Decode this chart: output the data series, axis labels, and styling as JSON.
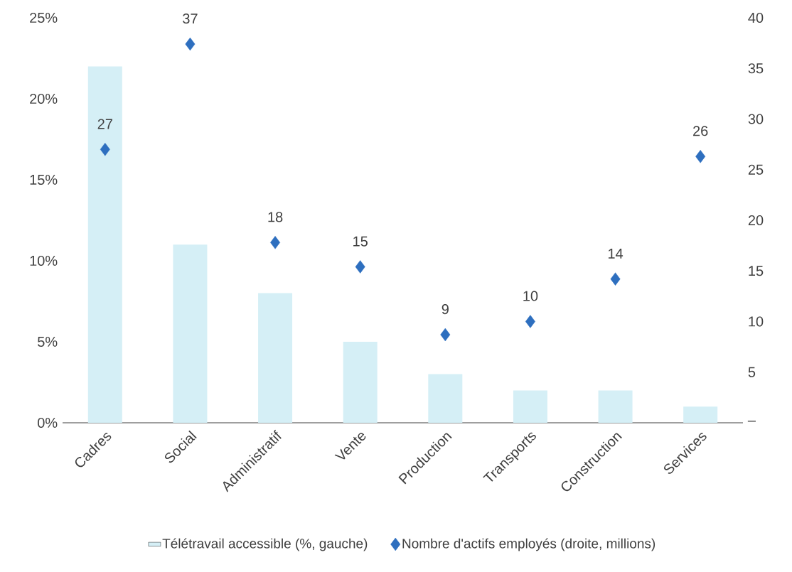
{
  "chart_data": {
    "type": "bar",
    "categories": [
      "Cadres",
      "Social",
      "Administratif",
      "Vente",
      "Production",
      "Transports",
      "Construction",
      "Services"
    ],
    "series": [
      {
        "name": "Télétravail accessible (%, gauche)",
        "color": "#d5eff6",
        "values": [
          22,
          11,
          8,
          5,
          3,
          2,
          2,
          1
        ]
      },
      {
        "name": "Nombre d'actifs employés (droite, millions)",
        "type": "scatter",
        "axis": "y2",
        "color": "#2e6fbf",
        "values": [
          27,
          37.4,
          17.8,
          15.4,
          8.7,
          10,
          14.2,
          26.3
        ],
        "value_labels": [
          "27",
          "37",
          "18",
          "15",
          "9",
          "10",
          "14",
          "26"
        ]
      }
    ],
    "ylim": [
      0,
      25
    ],
    "yticks": [
      {
        "value": 0,
        "label": "0%"
      },
      {
        "value": 5,
        "label": "5%"
      },
      {
        "value": 10,
        "label": "10%"
      },
      {
        "value": 15,
        "label": "15%"
      },
      {
        "value": 20,
        "label": "20%"
      },
      {
        "value": 25,
        "label": "25%"
      }
    ],
    "y2lim": [
      0,
      40
    ],
    "y2ticks": [
      {
        "value": 0,
        "label": "–"
      },
      5,
      10,
      15,
      20,
      25,
      30,
      35,
      40
    ],
    "marker": "diamond",
    "legend": "bottom",
    "grid": false
  }
}
